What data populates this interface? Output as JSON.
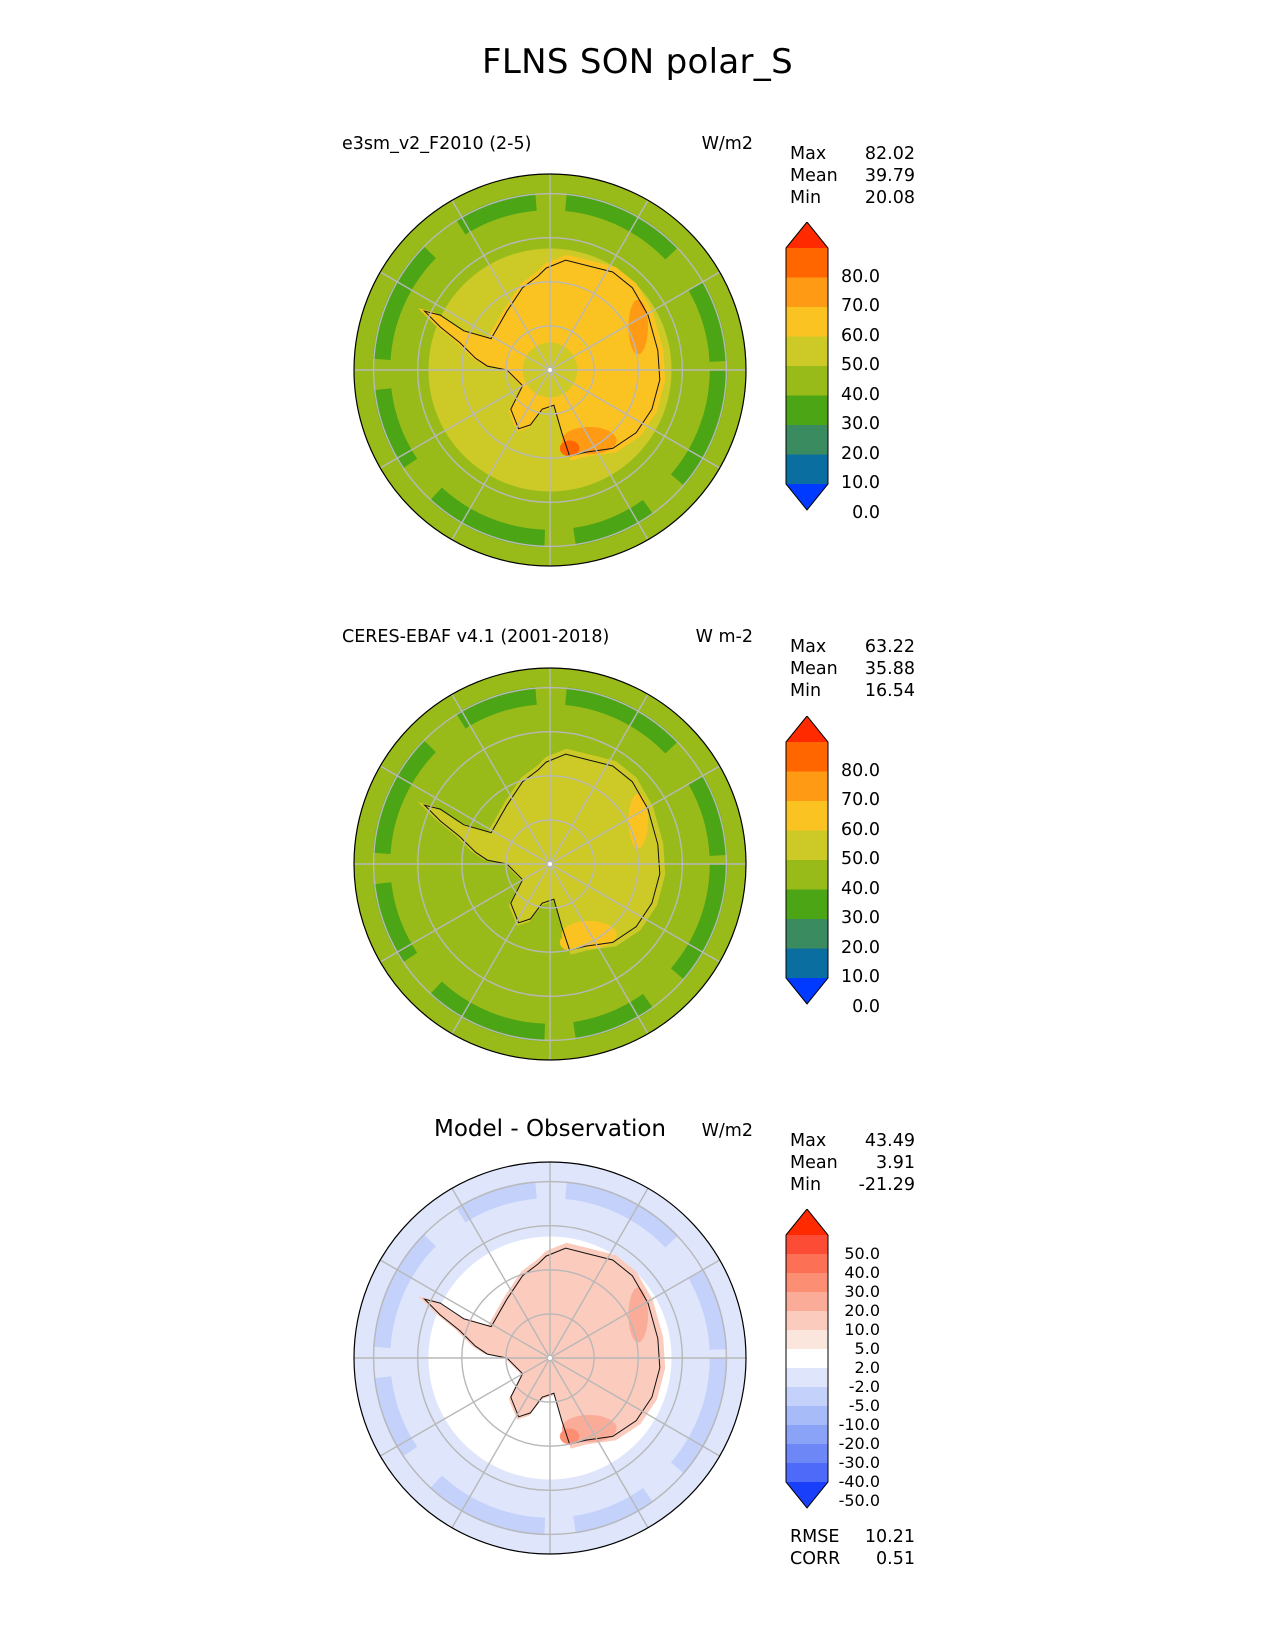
{
  "figure_title": "FLNS SON polar_S",
  "panels": [
    {
      "left_title": "e3sm_v2_F2010 (2-5)",
      "units": "W/m2",
      "stats": {
        "max_label": "Max",
        "max": "82.02",
        "mean_label": "Mean",
        "mean": "39.79",
        "min_label": "Min",
        "min": "20.08"
      }
    },
    {
      "left_title": "CERES-EBAF v4.1 (2001-2018)",
      "units": "W m-2",
      "stats": {
        "max_label": "Max",
        "max": "63.22",
        "mean_label": "Mean",
        "mean": "35.88",
        "min_label": "Min",
        "min": "16.54"
      }
    },
    {
      "center_title": "Model - Observation",
      "units": "W/m2",
      "stats": {
        "max_label": "Max",
        "max": "43.49",
        "mean_label": "Mean",
        "mean": "3.91",
        "min_label": "Min",
        "min": "-21.29"
      },
      "metrics": {
        "rmse_label": "RMSE",
        "rmse": "10.21",
        "corr_label": "CORR",
        "corr": "0.51"
      }
    }
  ],
  "colorbar_main": {
    "labels": [
      "80.0",
      "70.0",
      "60.0",
      "50.0",
      "40.0",
      "30.0",
      "20.0",
      "10.0",
      "0.0"
    ],
    "colors": [
      "#ff2a00",
      "#ff6600",
      "#ff9a14",
      "#fbc322",
      "#cdca28",
      "#99bb1a",
      "#4ca515",
      "#3a8b60",
      "#0a6ea0",
      "#0039ff"
    ]
  },
  "colorbar_diff": {
    "labels": [
      "50.0",
      "40.0",
      "30.0",
      "20.0",
      "10.0",
      "5.0",
      "2.0",
      "-2.0",
      "-5.0",
      "-10.0",
      "-20.0",
      "-30.0",
      "-40.0",
      "-50.0"
    ],
    "colors": [
      "#ff2a00",
      "#fd4c36",
      "#fc7055",
      "#fc8e74",
      "#fbac98",
      "#fbcbbd",
      "#fbe6dd",
      "#ffffff",
      "#dfe6fb",
      "#c4d2fb",
      "#a8bbf9",
      "#8ba3f7",
      "#6d88f6",
      "#4d6af8",
      "#1a3ffb"
    ]
  },
  "map_fields": {
    "model": {
      "ocean": "#99bb1a",
      "belt": "#4ca515",
      "coast": "#cdca28",
      "interior": "#fbc322",
      "hot": "#ff9a14",
      "hot2": "#ff6600",
      "pole": "#cdca28"
    },
    "obs": {
      "ocean": "#99bb1a",
      "belt": "#4ca515",
      "coast": "#99bb1a",
      "interior": "#cdca28",
      "hot": "#fbc322",
      "hot2": "#fbc322",
      "pole": "#cdca28"
    },
    "diff": {
      "ocean": "#dfe6fb",
      "belt": "#c4d2fb",
      "coast": "#ffffff",
      "interior": "#fbcbbd",
      "hot": "#fbac98",
      "hot2": "#fc8e74",
      "pole": "#fbcbbd"
    }
  }
}
